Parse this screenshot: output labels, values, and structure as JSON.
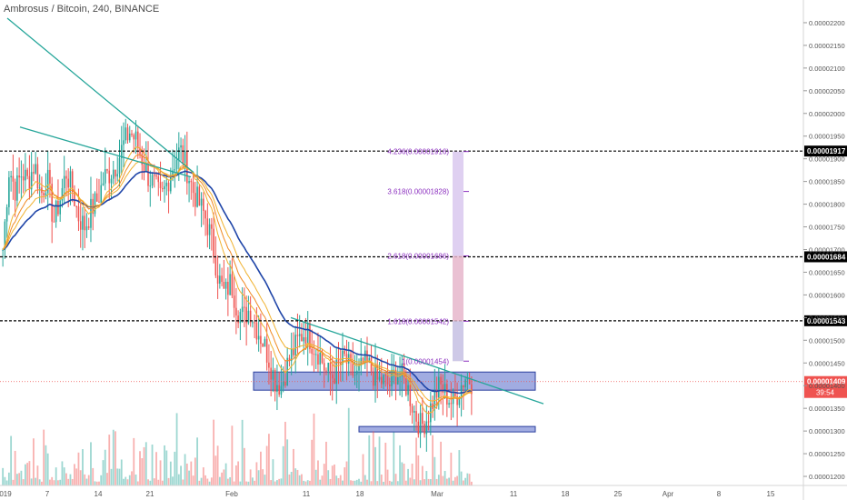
{
  "header": {
    "title": "Ambrosus / Bitcoin, 240, BINANCE"
  },
  "colors": {
    "up": "#26a69a",
    "down": "#ef5350",
    "ma_dark": "#1f45a8",
    "ma_gold": "#f0b12e",
    "ma_orange": "#f08a24",
    "trend": "#26a69a",
    "zone": "#5468c8",
    "fib": "#8b2fbf",
    "current_price": "#ef5350"
  },
  "chart_data": {
    "type": "candlestick",
    "title": "Ambrosus / Bitcoin, 240, BINANCE",
    "ylim": [
      1.18e-05,
      2.25e-05
    ],
    "price_ticks": [
      "0.00002200",
      "0.00002150",
      "0.00002100",
      "0.00002050",
      "0.00002000",
      "0.00001950",
      "0.00001900",
      "0.00001850",
      "0.00001800",
      "0.00001750",
      "0.00001700",
      "0.00001650",
      "0.00001600",
      "0.00001550",
      "0.00001500",
      "0.00001450",
      "0.00001400",
      "0.00001350",
      "0.00001300",
      "0.00001250",
      "0.00001200"
    ],
    "time_ticks": [
      "019",
      "7",
      "14",
      "21",
      "Feb",
      "11",
      "18",
      "Mar",
      "11",
      "18",
      "25",
      "Apr",
      "8",
      "15"
    ],
    "horizontal_levels": [
      {
        "price": 1.917e-05,
        "label": "0.00001917"
      },
      {
        "price": 1.684e-05,
        "label": "0.00001684"
      },
      {
        "price": 1.543e-05,
        "label": "0.00001543"
      }
    ],
    "current_price": {
      "price": 1.409e-05,
      "label": "0.00001409",
      "countdown": "39:54"
    },
    "fib_labels": [
      {
        "text": "4.236(0.00001916)",
        "price": 1.916e-05
      },
      {
        "text": "3.618(0.00001828)",
        "price": 1.828e-05
      },
      {
        "text": "2.618(0.00001686)",
        "price": 1.686e-05
      },
      {
        "text": "1.618(0.00001542)",
        "price": 1.542e-05
      },
      {
        "text": "1(0.00001454)",
        "price": 1.454e-05
      }
    ],
    "zones": [
      {
        "top": 1.43e-05,
        "bottom": 1.39e-05
      },
      {
        "top": 1.31e-05,
        "bottom": 1.298e-05
      }
    ],
    "close_series": [
      1.7e-05,
      1.88e-05,
      1.83e-05,
      1.87e-05,
      1.85e-05,
      1.89e-05,
      1.82e-05,
      1.86e-05,
      1.76e-05,
      1.81e-05,
      1.87e-05,
      1.83e-05,
      1.77e-05,
      1.75e-05,
      1.79e-05,
      1.81e-05,
      1.86e-05,
      1.87e-05,
      1.89e-05,
      1.93e-05,
      1.96e-05,
      1.94e-05,
      1.9e-05,
      1.86e-05,
      1.84e-05,
      1.81e-05,
      1.85e-05,
      1.89e-05,
      1.92e-05,
      1.88e-05,
      1.83e-05,
      1.8e-05,
      1.77e-05,
      1.72e-05,
      1.64e-05,
      1.6e-05,
      1.63e-05,
      1.57e-05,
      1.55e-05,
      1.57e-05,
      1.53e-05,
      1.5e-05,
      1.46e-05,
      1.41e-05,
      1.4e-05,
      1.45e-05,
      1.48e-05,
      1.51e-05,
      1.52e-05,
      1.49e-05,
      1.47e-05,
      1.43e-05,
      1.42e-05,
      1.44e-05,
      1.46e-05,
      1.43e-05,
      1.42e-05,
      1.45e-05,
      1.44e-05,
      1.41e-05,
      1.41e-05,
      1.4e-05,
      1.43e-05,
      1.42e-05,
      1.39e-05,
      1.34e-05,
      1.31e-05,
      1.33e-05,
      1.37e-05,
      1.4e-05,
      1.38e-05,
      1.36e-05,
      1.39e-05,
      1.42e-05,
      1.41e-05
    ]
  }
}
